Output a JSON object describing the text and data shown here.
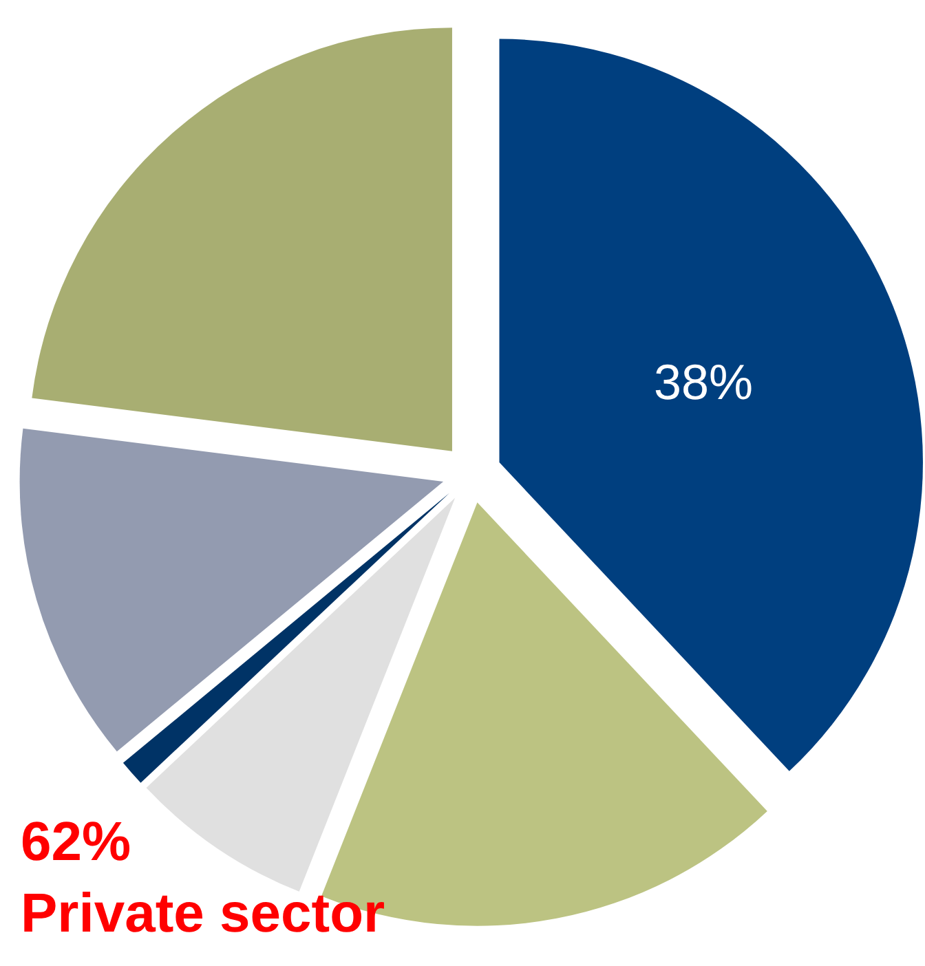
{
  "chart_data": {
    "type": "pie",
    "categories": [
      null,
      null,
      null,
      null,
      null,
      null
    ],
    "values": [
      38,
      18,
      7,
      1,
      13,
      23
    ],
    "colors": [
      "#003f7f",
      "#bcc382",
      "#e0e0e0",
      "#003366",
      "#939bb0",
      "#a8ae72"
    ],
    "value_labels": [
      "38%",
      null,
      null,
      null,
      null,
      null
    ],
    "annotations": [
      "62%\nPrivate sector"
    ],
    "legend": false
  }
}
